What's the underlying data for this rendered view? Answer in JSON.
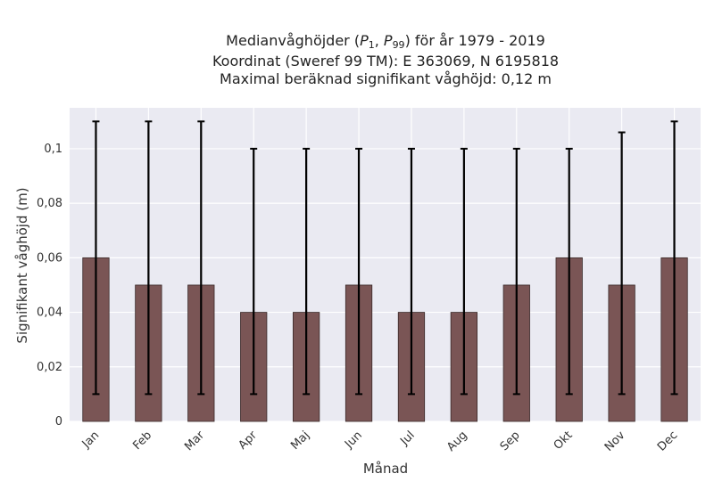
{
  "chart_data": {
    "type": "bar",
    "title_lines": [
      "Medianvåghöjder (P1, P99) för år 1979 - 2019",
      "Koordinat (Sweref 99 TM): E 363069, N 6195818",
      "Maximal beräknad signifikant våghöjd: 0,12 m"
    ],
    "title_math": {
      "prefix": "Medianvåghöjder (",
      "p1_base": "P",
      "p1_sub": "1",
      "sep": ", ",
      "p99_base": "P",
      "p99_sub": "99",
      "suffix": ") för år 1979 - 2019"
    },
    "xlabel": "Månad",
    "ylabel": "Signifikant våghöjd (m)",
    "categories": [
      "Jan",
      "Feb",
      "Mar",
      "Apr",
      "Maj",
      "Jun",
      "Jul",
      "Aug",
      "Sep",
      "Okt",
      "Nov",
      "Dec"
    ],
    "values": [
      0.06,
      0.05,
      0.05,
      0.04,
      0.04,
      0.05,
      0.04,
      0.04,
      0.05,
      0.06,
      0.05,
      0.06
    ],
    "error_low": [
      0.01,
      0.01,
      0.01,
      0.01,
      0.01,
      0.01,
      0.01,
      0.01,
      0.01,
      0.01,
      0.01,
      0.01
    ],
    "error_high": [
      0.11,
      0.11,
      0.11,
      0.1,
      0.1,
      0.1,
      0.1,
      0.1,
      0.1,
      0.1,
      0.106,
      0.11
    ],
    "ylim": [
      0,
      0.115
    ],
    "yticks": [
      0,
      0.02,
      0.04,
      0.06,
      0.08,
      0.1
    ],
    "ytick_labels": [
      "0",
      "0,02",
      "0,04",
      "0,06",
      "0,08",
      "0,1"
    ],
    "grid": true,
    "colors": {
      "bar": "#7a5555",
      "bar_edge": "#3a2a2a",
      "error": "#000000",
      "plot_bg": "#eaeaf2",
      "grid": "#ffffff"
    }
  }
}
